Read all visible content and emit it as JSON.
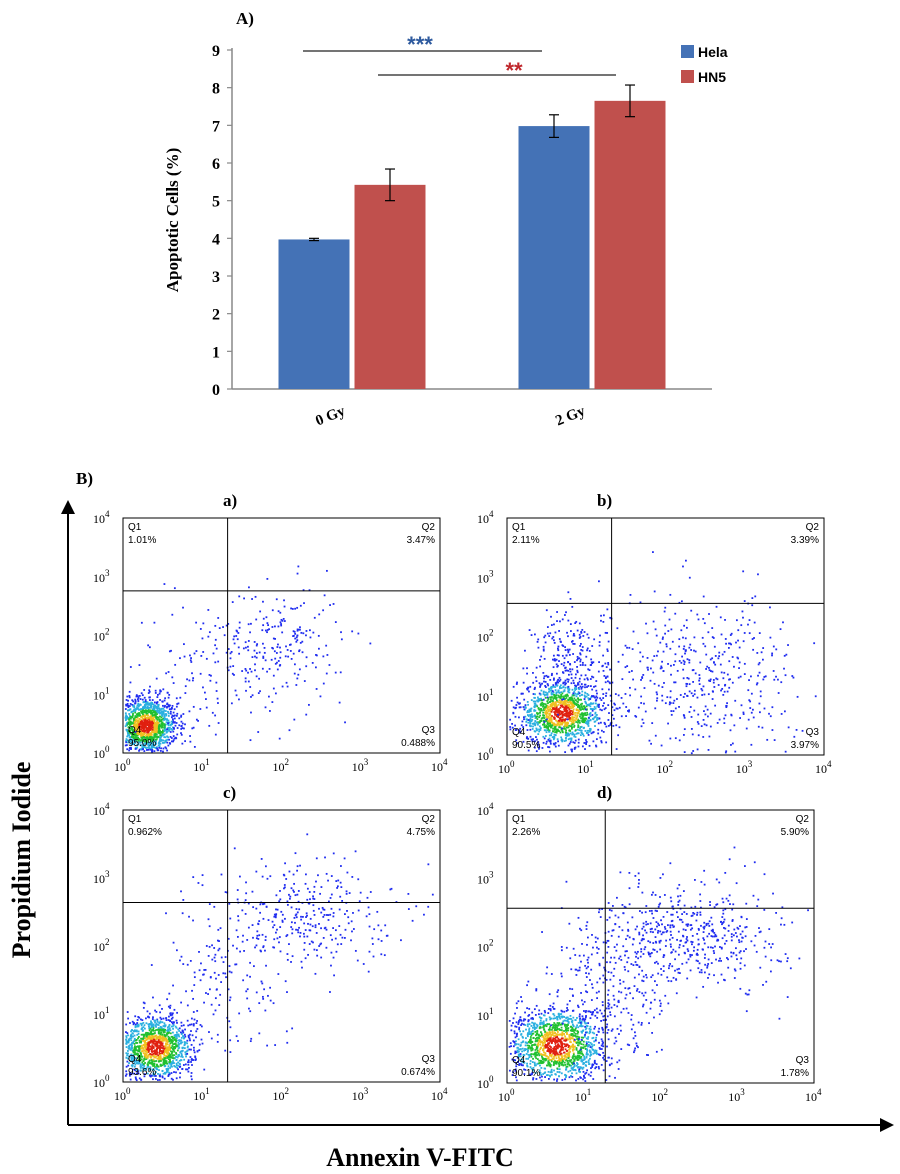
{
  "chart_data": [
    {
      "panel": "A)",
      "type": "bar",
      "categories": [
        "0 Gy",
        "2 Gy"
      ],
      "series": [
        {
          "name": "Hela",
          "values": [
            3.97,
            6.98
          ],
          "errors": [
            0.03,
            0.3
          ],
          "color": "#4472b6"
        },
        {
          "name": "HN5",
          "values": [
            5.42,
            7.65
          ],
          "errors": [
            0.42,
            0.42
          ],
          "color": "#c0504d"
        }
      ],
      "ylabel": "Apoptotic Cells (%)",
      "ylim": [
        0,
        9
      ],
      "yticks": [
        "0",
        "1",
        "2",
        "3",
        "4",
        "5",
        "6",
        "7",
        "8",
        "9"
      ],
      "grid": false,
      "legend_position": "top-right",
      "significance": [
        {
          "label": "***",
          "color": "#2e5a9e"
        },
        {
          "label": "**",
          "color": "#c0282d"
        }
      ]
    },
    {
      "panel": "B)",
      "type": "scatter",
      "xlabel": "Annexin V-FITC",
      "ylabel": "Propidium Iodide",
      "scale": "log",
      "xlim": [
        1,
        10000
      ],
      "ylim": [
        1,
        10000
      ],
      "ticks": [
        "10",
        "10",
        "10",
        "10",
        "10"
      ],
      "tick_exponents": [
        "0",
        "1",
        "2",
        "3",
        "4"
      ],
      "subplots": [
        {
          "label": "a)",
          "quadrants": {
            "Q1": "1.01%",
            "Q2": "3.47%",
            "Q3": "0.488%",
            "Q4": "95.0%"
          }
        },
        {
          "label": "b)",
          "quadrants": {
            "Q1": "2.11%",
            "Q2": "3.39%",
            "Q3": "3.97%",
            "Q4": "90.5%"
          }
        },
        {
          "label": "c)",
          "quadrants": {
            "Q1": "0.962%",
            "Q2": "4.75%",
            "Q3": "0.674%",
            "Q4": "93.6%"
          }
        },
        {
          "label": "d)",
          "quadrants": {
            "Q1": "2.26%",
            "Q2": "5.90%",
            "Q3": "1.78%",
            "Q4": "90.1%"
          }
        }
      ]
    }
  ]
}
